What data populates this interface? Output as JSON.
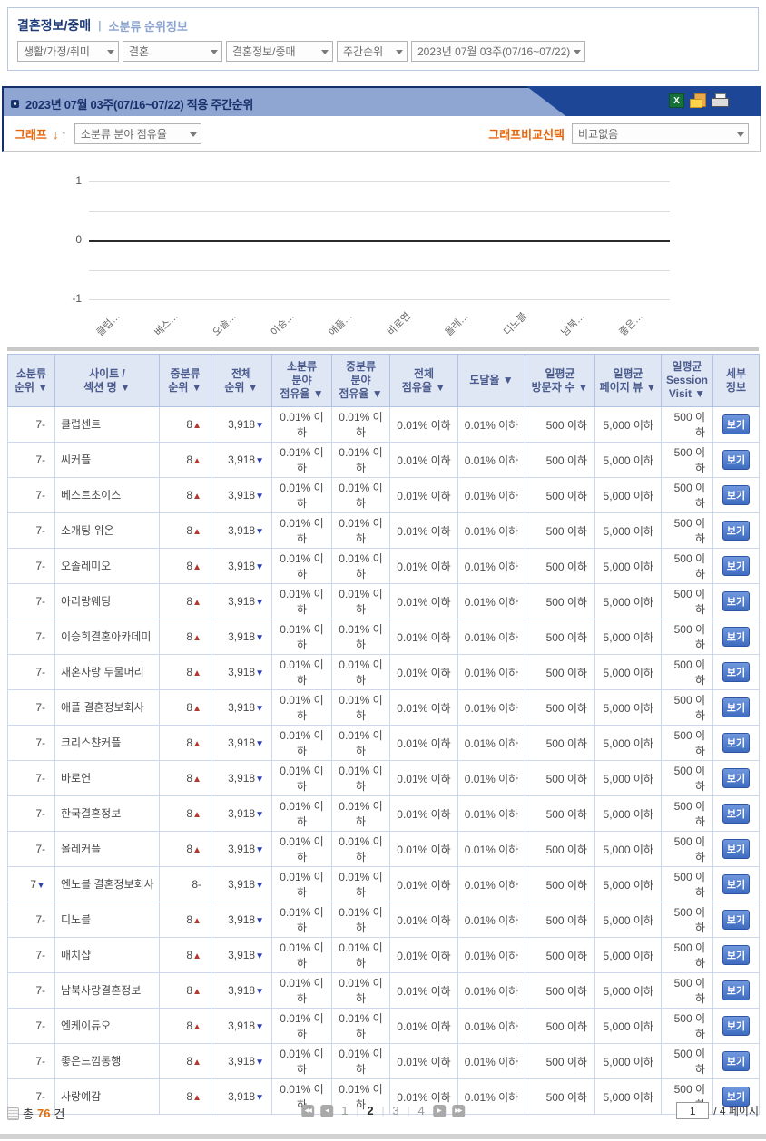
{
  "breadcrumb": {
    "title": "결혼정보/중매",
    "separator": "|",
    "subtitle": "소분류 순위정보"
  },
  "filters": [
    "생활/가정/취미",
    "결혼",
    "결혼정보/중매",
    "주간순위",
    "2023년 07월 03주(07/16~07/22)"
  ],
  "panel": {
    "title": "2023년 07월 03주(07/16~07/22) 적용 주간순위",
    "icons": [
      "excel-export-icon",
      "copy-icon",
      "print-icon"
    ]
  },
  "graph_controls": {
    "graph_label": "그래프",
    "graph_metric": "소분류 분야 점유율",
    "compare_label": "그래프비교선택",
    "compare_value": "비교없음"
  },
  "chart_data": {
    "type": "line",
    "title": "",
    "xlabel": "",
    "ylabel": "",
    "categories": [
      "클럽…",
      "베스…",
      "오솔…",
      "이승…",
      "애플…",
      "바로연",
      "올레…",
      "디노블",
      "남북…",
      "좋은…"
    ],
    "values": [
      0,
      0,
      0,
      0,
      0,
      0,
      0,
      0,
      0,
      0
    ],
    "ylim": [
      -1,
      1
    ],
    "yticks": [
      1,
      0,
      -1
    ],
    "gridlevels": [
      1,
      0.5,
      0,
      -0.5,
      -1
    ],
    "grid": true,
    "legend": "none"
  },
  "table": {
    "headers": [
      "소분류\n순위 ▼",
      "사이트 /\n섹션 명 ▼",
      "중분류\n순위 ▼",
      "전체\n순위 ▼",
      "소분류\n분야\n점유율 ▼",
      "중분류\n분야\n점유율 ▼",
      "전체\n점유율 ▼",
      "도달율 ▼",
      "일평균\n방문자 수 ▼",
      "일평균\n페이지 뷰 ▼",
      "일평균\nSession\nVisit ▼",
      "세부\n정보"
    ],
    "arrows": {
      "up": "▲",
      "down": "▼",
      "flat": "-"
    },
    "detail_label": "보기",
    "rows": [
      {
        "sub": "7",
        "sub_d": "flat",
        "site": "클럽센트",
        "mid": "8",
        "mid_d": "up",
        "total": "3,918",
        "total_d": "down",
        "sub_share": "0.01% 이하",
        "mid_share": "0.01% 이하",
        "tot_share": "0.01% 이하",
        "reach": "0.01% 이하",
        "visitors": "500 이하",
        "pageviews": "5,000 이하",
        "session": "500 이하"
      },
      {
        "sub": "7",
        "sub_d": "flat",
        "site": "씨커플",
        "mid": "8",
        "mid_d": "up",
        "total": "3,918",
        "total_d": "down",
        "sub_share": "0.01% 이하",
        "mid_share": "0.01% 이하",
        "tot_share": "0.01% 이하",
        "reach": "0.01% 이하",
        "visitors": "500 이하",
        "pageviews": "5,000 이하",
        "session": "500 이하"
      },
      {
        "sub": "7",
        "sub_d": "flat",
        "site": "베스트초이스",
        "mid": "8",
        "mid_d": "up",
        "total": "3,918",
        "total_d": "down",
        "sub_share": "0.01% 이하",
        "mid_share": "0.01% 이하",
        "tot_share": "0.01% 이하",
        "reach": "0.01% 이하",
        "visitors": "500 이하",
        "pageviews": "5,000 이하",
        "session": "500 이하"
      },
      {
        "sub": "7",
        "sub_d": "flat",
        "site": "소개팅 위온",
        "mid": "8",
        "mid_d": "up",
        "total": "3,918",
        "total_d": "down",
        "sub_share": "0.01% 이하",
        "mid_share": "0.01% 이하",
        "tot_share": "0.01% 이하",
        "reach": "0.01% 이하",
        "visitors": "500 이하",
        "pageviews": "5,000 이하",
        "session": "500 이하"
      },
      {
        "sub": "7",
        "sub_d": "flat",
        "site": "오솔레미오",
        "mid": "8",
        "mid_d": "up",
        "total": "3,918",
        "total_d": "down",
        "sub_share": "0.01% 이하",
        "mid_share": "0.01% 이하",
        "tot_share": "0.01% 이하",
        "reach": "0.01% 이하",
        "visitors": "500 이하",
        "pageviews": "5,000 이하",
        "session": "500 이하"
      },
      {
        "sub": "7",
        "sub_d": "flat",
        "site": "아리랑웨딩",
        "mid": "8",
        "mid_d": "up",
        "total": "3,918",
        "total_d": "down",
        "sub_share": "0.01% 이하",
        "mid_share": "0.01% 이하",
        "tot_share": "0.01% 이하",
        "reach": "0.01% 이하",
        "visitors": "500 이하",
        "pageviews": "5,000 이하",
        "session": "500 이하"
      },
      {
        "sub": "7",
        "sub_d": "flat",
        "site": "이승희결혼아카데미",
        "mid": "8",
        "mid_d": "up",
        "total": "3,918",
        "total_d": "down",
        "sub_share": "0.01% 이하",
        "mid_share": "0.01% 이하",
        "tot_share": "0.01% 이하",
        "reach": "0.01% 이하",
        "visitors": "500 이하",
        "pageviews": "5,000 이하",
        "session": "500 이하"
      },
      {
        "sub": "7",
        "sub_d": "flat",
        "site": "재혼사랑 두물머리",
        "mid": "8",
        "mid_d": "up",
        "total": "3,918",
        "total_d": "down",
        "sub_share": "0.01% 이하",
        "mid_share": "0.01% 이하",
        "tot_share": "0.01% 이하",
        "reach": "0.01% 이하",
        "visitors": "500 이하",
        "pageviews": "5,000 이하",
        "session": "500 이하"
      },
      {
        "sub": "7",
        "sub_d": "flat",
        "site": "애플 결혼정보회사",
        "mid": "8",
        "mid_d": "up",
        "total": "3,918",
        "total_d": "down",
        "sub_share": "0.01% 이하",
        "mid_share": "0.01% 이하",
        "tot_share": "0.01% 이하",
        "reach": "0.01% 이하",
        "visitors": "500 이하",
        "pageviews": "5,000 이하",
        "session": "500 이하"
      },
      {
        "sub": "7",
        "sub_d": "flat",
        "site": "크리스챤커플",
        "mid": "8",
        "mid_d": "up",
        "total": "3,918",
        "total_d": "down",
        "sub_share": "0.01% 이하",
        "mid_share": "0.01% 이하",
        "tot_share": "0.01% 이하",
        "reach": "0.01% 이하",
        "visitors": "500 이하",
        "pageviews": "5,000 이하",
        "session": "500 이하"
      },
      {
        "sub": "7",
        "sub_d": "flat",
        "site": "바로연",
        "mid": "8",
        "mid_d": "up",
        "total": "3,918",
        "total_d": "down",
        "sub_share": "0.01% 이하",
        "mid_share": "0.01% 이하",
        "tot_share": "0.01% 이하",
        "reach": "0.01% 이하",
        "visitors": "500 이하",
        "pageviews": "5,000 이하",
        "session": "500 이하"
      },
      {
        "sub": "7",
        "sub_d": "flat",
        "site": "한국결혼정보",
        "mid": "8",
        "mid_d": "up",
        "total": "3,918",
        "total_d": "down",
        "sub_share": "0.01% 이하",
        "mid_share": "0.01% 이하",
        "tot_share": "0.01% 이하",
        "reach": "0.01% 이하",
        "visitors": "500 이하",
        "pageviews": "5,000 이하",
        "session": "500 이하"
      },
      {
        "sub": "7",
        "sub_d": "flat",
        "site": "올레커플",
        "mid": "8",
        "mid_d": "up",
        "total": "3,918",
        "total_d": "down",
        "sub_share": "0.01% 이하",
        "mid_share": "0.01% 이하",
        "tot_share": "0.01% 이하",
        "reach": "0.01% 이하",
        "visitors": "500 이하",
        "pageviews": "5,000 이하",
        "session": "500 이하"
      },
      {
        "sub": "7",
        "sub_d": "down",
        "site": "엔노블 결혼정보회사",
        "mid": "8",
        "mid_d": "flat",
        "total": "3,918",
        "total_d": "down",
        "sub_share": "0.01% 이하",
        "mid_share": "0.01% 이하",
        "tot_share": "0.01% 이하",
        "reach": "0.01% 이하",
        "visitors": "500 이하",
        "pageviews": "5,000 이하",
        "session": "500 이하"
      },
      {
        "sub": "7",
        "sub_d": "flat",
        "site": "디노블",
        "mid": "8",
        "mid_d": "up",
        "total": "3,918",
        "total_d": "down",
        "sub_share": "0.01% 이하",
        "mid_share": "0.01% 이하",
        "tot_share": "0.01% 이하",
        "reach": "0.01% 이하",
        "visitors": "500 이하",
        "pageviews": "5,000 이하",
        "session": "500 이하"
      },
      {
        "sub": "7",
        "sub_d": "flat",
        "site": "매치샵",
        "mid": "8",
        "mid_d": "up",
        "total": "3,918",
        "total_d": "down",
        "sub_share": "0.01% 이하",
        "mid_share": "0.01% 이하",
        "tot_share": "0.01% 이하",
        "reach": "0.01% 이하",
        "visitors": "500 이하",
        "pageviews": "5,000 이하",
        "session": "500 이하"
      },
      {
        "sub": "7",
        "sub_d": "flat",
        "site": "남북사랑결혼정보",
        "mid": "8",
        "mid_d": "up",
        "total": "3,918",
        "total_d": "down",
        "sub_share": "0.01% 이하",
        "mid_share": "0.01% 이하",
        "tot_share": "0.01% 이하",
        "reach": "0.01% 이하",
        "visitors": "500 이하",
        "pageviews": "5,000 이하",
        "session": "500 이하"
      },
      {
        "sub": "7",
        "sub_d": "flat",
        "site": "엔케이듀오",
        "mid": "8",
        "mid_d": "up",
        "total": "3,918",
        "total_d": "down",
        "sub_share": "0.01% 이하",
        "mid_share": "0.01% 이하",
        "tot_share": "0.01% 이하",
        "reach": "0.01% 이하",
        "visitors": "500 이하",
        "pageviews": "5,000 이하",
        "session": "500 이하"
      },
      {
        "sub": "7",
        "sub_d": "flat",
        "site": "좋은느낌동행",
        "mid": "8",
        "mid_d": "up",
        "total": "3,918",
        "total_d": "down",
        "sub_share": "0.01% 이하",
        "mid_share": "0.01% 이하",
        "tot_share": "0.01% 이하",
        "reach": "0.01% 이하",
        "visitors": "500 이하",
        "pageviews": "5,000 이하",
        "session": "500 이하"
      },
      {
        "sub": "7",
        "sub_d": "flat",
        "site": "사랑예감",
        "mid": "8",
        "mid_d": "up",
        "total": "3,918",
        "total_d": "down",
        "sub_share": "0.01% 이하",
        "mid_share": "0.01% 이하",
        "tot_share": "0.01% 이하",
        "reach": "0.01% 이하",
        "visitors": "500 이하",
        "pageviews": "5,000 이하",
        "session": "500 이하"
      }
    ]
  },
  "footer": {
    "total_prefix": "총",
    "total_count": "76",
    "total_suffix": "건",
    "pages": [
      "1",
      "2",
      "3",
      "4"
    ],
    "current_page": "2",
    "page_separator": "|",
    "page_input": "1",
    "page_total_label": "/ 4 페이지"
  },
  "colors": {
    "panel_light_blue": "#8fa5d2",
    "panel_dark_blue": "#1d4796",
    "accent_orange": "#e8640a",
    "rank_up": "#b03a2e",
    "rank_down": "#2b3fae",
    "header_bg": "#dfe6f4",
    "header_text": "#4a5a8c"
  }
}
